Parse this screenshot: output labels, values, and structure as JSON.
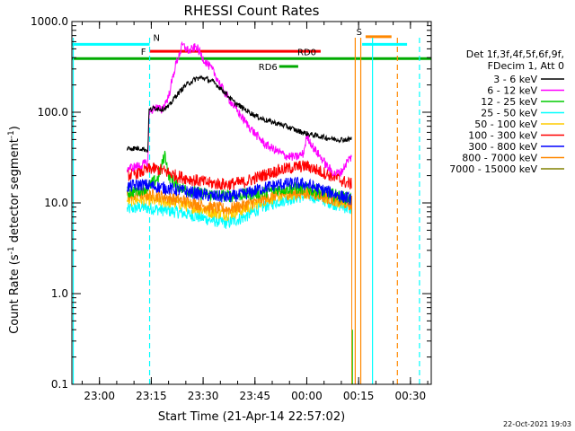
{
  "chart_data": {
    "type": "line",
    "title": "RHESSI Count Rates",
    "xlabel": "Start Time (21-Apr-14 22:57:02)",
    "ylabel_parts": [
      "Count Rate (s",
      "-1",
      " detector segment",
      "-1",
      ")"
    ],
    "yscale": "log",
    "ylim": [
      0.1,
      1000
    ],
    "y_ticks": [
      {
        "v": 0.1,
        "label": "0.1"
      },
      {
        "v": 1,
        "label": "1.0"
      },
      {
        "v": 10,
        "label": "10.0"
      },
      {
        "v": 100,
        "label": "100.0"
      },
      {
        "v": 1000,
        "label": "1000.0"
      }
    ],
    "xlim_min": [
      -5.0,
      99.0
    ],
    "x_ticks": [
      {
        "t": 2.98,
        "label": "23:00"
      },
      {
        "t": 17.98,
        "label": "23:15"
      },
      {
        "t": 32.98,
        "label": "23:30"
      },
      {
        "t": 47.98,
        "label": "23:45"
      },
      {
        "t": 62.98,
        "label": "00:00"
      },
      {
        "t": 77.98,
        "label": "00:15"
      },
      {
        "t": 92.98,
        "label": "00:30"
      }
    ],
    "legend_header": [
      "Det 1f,3f,4f,5f,6f,9f,",
      "FDecim 1, Att 0"
    ],
    "series": [
      {
        "name": "3 - 6 keV",
        "color": "#000000",
        "points": [
          [
            11,
            40
          ],
          [
            15,
            40
          ],
          [
            17,
            38
          ],
          [
            17.3,
            105
          ],
          [
            19,
            112
          ],
          [
            21,
            108
          ],
          [
            23,
            115
          ],
          [
            25,
            150
          ],
          [
            28,
            200
          ],
          [
            31,
            235
          ],
          [
            33,
            240
          ],
          [
            36,
            215
          ],
          [
            39,
            170
          ],
          [
            42,
            128
          ],
          [
            45,
            108
          ],
          [
            48,
            92
          ],
          [
            51,
            82
          ],
          [
            54,
            76
          ],
          [
            57,
            70
          ],
          [
            60,
            63
          ],
          [
            63,
            58
          ],
          [
            66,
            55
          ],
          [
            69,
            52
          ],
          [
            72,
            50
          ],
          [
            75,
            50
          ],
          [
            76,
            52
          ]
        ]
      },
      {
        "name": "6 - 12 keV",
        "color": "#ff00ff",
        "points": [
          [
            11,
            24
          ],
          [
            15,
            26
          ],
          [
            17,
            28
          ],
          [
            17.3,
            95
          ],
          [
            19,
            115
          ],
          [
            21,
            105
          ],
          [
            23,
            150
          ],
          [
            25,
            330
          ],
          [
            27,
            550
          ],
          [
            29,
            470
          ],
          [
            31,
            530
          ],
          [
            33,
            390
          ],
          [
            36,
            280
          ],
          [
            39,
            170
          ],
          [
            42,
            115
          ],
          [
            45,
            80
          ],
          [
            48,
            58
          ],
          [
            51,
            44
          ],
          [
            54,
            38
          ],
          [
            57,
            33
          ],
          [
            60,
            32
          ],
          [
            62,
            35
          ],
          [
            63,
            55
          ],
          [
            65,
            40
          ],
          [
            67,
            32
          ],
          [
            69,
            25
          ],
          [
            71,
            21
          ],
          [
            73,
            22
          ],
          [
            75,
            30
          ],
          [
            76,
            32
          ]
        ]
      },
      {
        "name": "12 - 25 keV",
        "color": "#00cc00",
        "points": [
          [
            11,
            13
          ],
          [
            15,
            14
          ],
          [
            17,
            15
          ],
          [
            20,
            19
          ],
          [
            22,
            35
          ],
          [
            23,
            20
          ],
          [
            25,
            16
          ],
          [
            28,
            14
          ],
          [
            31,
            13
          ],
          [
            34,
            12.5
          ],
          [
            38,
            12
          ],
          [
            42,
            12
          ],
          [
            46,
            12.5
          ],
          [
            50,
            13
          ],
          [
            54,
            14
          ],
          [
            58,
            14.5
          ],
          [
            62,
            14.5
          ],
          [
            66,
            13.5
          ],
          [
            70,
            12.5
          ],
          [
            74,
            11.5
          ],
          [
            76,
            11
          ]
        ]
      },
      {
        "name": "25 - 50 keV",
        "color": "#00ffff",
        "points": [
          [
            11,
            8.5
          ],
          [
            15,
            9
          ],
          [
            20,
            8.5
          ],
          [
            25,
            8
          ],
          [
            30,
            7.3
          ],
          [
            35,
            6.5
          ],
          [
            40,
            6
          ],
          [
            45,
            7
          ],
          [
            50,
            9
          ],
          [
            55,
            10.5
          ],
          [
            60,
            11.5
          ],
          [
            63,
            12
          ],
          [
            66,
            11.5
          ],
          [
            70,
            10
          ],
          [
            74,
            9
          ],
          [
            76,
            8.5
          ]
        ]
      },
      {
        "name": "50 - 100 keV",
        "color": "#ffcc00",
        "points": [
          [
            11,
            10.5
          ],
          [
            15,
            11
          ],
          [
            20,
            10.5
          ],
          [
            25,
            10
          ],
          [
            30,
            9
          ],
          [
            35,
            8
          ],
          [
            40,
            7.5
          ],
          [
            45,
            8.5
          ],
          [
            50,
            10.5
          ],
          [
            55,
            12
          ],
          [
            60,
            12.5
          ],
          [
            63,
            13
          ],
          [
            66,
            12.5
          ],
          [
            70,
            11
          ],
          [
            74,
            10
          ],
          [
            76,
            9.5
          ]
        ]
      },
      {
        "name": "100 - 300 keV",
        "color": "#ff0000",
        "points": [
          [
            11,
            20
          ],
          [
            15,
            22
          ],
          [
            18,
            24
          ],
          [
            21,
            23
          ],
          [
            25,
            20
          ],
          [
            30,
            18
          ],
          [
            35,
            16.5
          ],
          [
            40,
            16
          ],
          [
            45,
            17
          ],
          [
            50,
            20
          ],
          [
            55,
            23
          ],
          [
            60,
            25
          ],
          [
            63,
            25.5
          ],
          [
            66,
            23
          ],
          [
            70,
            20
          ],
          [
            74,
            17
          ],
          [
            76,
            16
          ]
        ]
      },
      {
        "name": "300 - 800 keV",
        "color": "#0000ff",
        "points": [
          [
            11,
            15
          ],
          [
            15,
            16
          ],
          [
            20,
            15
          ],
          [
            25,
            14
          ],
          [
            30,
            13
          ],
          [
            35,
            12
          ],
          [
            40,
            11.5
          ],
          [
            45,
            12.5
          ],
          [
            50,
            14.5
          ],
          [
            55,
            16
          ],
          [
            60,
            16.5
          ],
          [
            63,
            16
          ],
          [
            66,
            14.5
          ],
          [
            70,
            13
          ],
          [
            74,
            11.5
          ],
          [
            76,
            11
          ]
        ]
      },
      {
        "name": "800 - 7000 keV",
        "color": "#ff8800",
        "points": [
          [
            11,
            12
          ],
          [
            15,
            12.5
          ],
          [
            20,
            12
          ],
          [
            25,
            11
          ],
          [
            30,
            10
          ],
          [
            35,
            9
          ],
          [
            40,
            8.5
          ],
          [
            45,
            9.5
          ],
          [
            50,
            11
          ],
          [
            55,
            12.5
          ],
          [
            60,
            13
          ],
          [
            63,
            13
          ],
          [
            66,
            12.5
          ],
          [
            70,
            11
          ],
          [
            74,
            10
          ],
          [
            76,
            9.5
          ]
        ]
      },
      {
        "name": "7000 - 15000 keV",
        "color": "#808000",
        "points": []
      }
    ],
    "flag_bars": [
      {
        "label": "N",
        "color": "#00ffff",
        "segments": [
          [
            -5,
            17.5
          ],
          [
            79,
            92
          ]
        ],
        "y": 560
      },
      {
        "label": "S",
        "color": "#ff8800",
        "segments": [
          [
            80,
            87.5
          ]
        ],
        "y": 680
      },
      {
        "label": "F",
        "color": "#ff0000",
        "segments": [
          [
            17.5,
            67
          ]
        ],
        "y": 470
      },
      {
        "label": "RD0",
        "color": "#00aa00",
        "segments": [
          [
            -5,
            99
          ]
        ],
        "y": 390
      },
      {
        "label": "RD6",
        "color": "#00aa00",
        "segments": [
          [
            55,
            60.5
          ]
        ],
        "y": 320
      }
    ],
    "vlines": [
      {
        "t": -4.6,
        "color": "#00ffff",
        "dash": false
      },
      {
        "t": 17.5,
        "color": "#00ffff",
        "dash": true
      },
      {
        "t": 77.0,
        "color": "#ff8800",
        "dash": false
      },
      {
        "t": 78.6,
        "color": "#ff8800",
        "dash": false
      },
      {
        "t": 82.0,
        "color": "#00ffff",
        "dash": false
      },
      {
        "t": 89.2,
        "color": "#ff8800",
        "dash": true
      },
      {
        "t": 95.6,
        "color": "#00ffff",
        "dash": true
      }
    ]
  },
  "footer_date": "22-Oct-2021 19:03"
}
